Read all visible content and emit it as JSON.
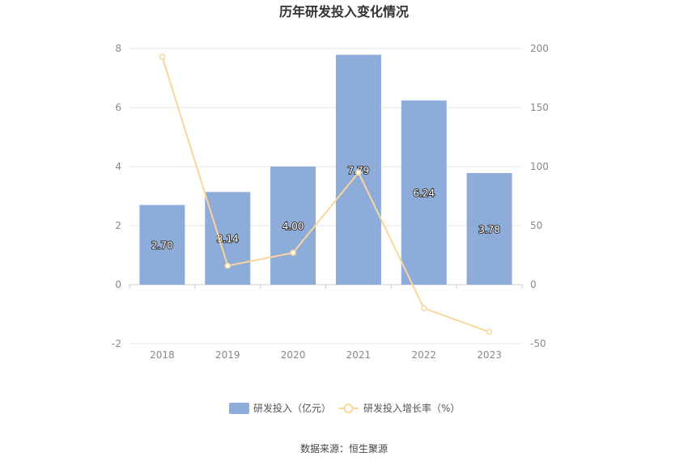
{
  "chart_data": {
    "type": "bar",
    "title": "历年研发投入变化情况",
    "categories": [
      "2018",
      "2019",
      "2020",
      "2021",
      "2022",
      "2023"
    ],
    "series": [
      {
        "name": "研发投入（亿元）",
        "type": "bar",
        "axis": "left",
        "values": [
          2.7,
          3.14,
          4.0,
          7.79,
          6.24,
          3.78
        ],
        "labels": [
          "2.70",
          "3.14",
          "4.00",
          "7.79",
          "6.24",
          "3.78"
        ],
        "color": "#8eacd9"
      },
      {
        "name": "研发投入增长率（%）",
        "type": "line",
        "axis": "right",
        "values": [
          193,
          16,
          27,
          95,
          -20,
          -40
        ],
        "color": "#f9d79b"
      }
    ],
    "left_axis": {
      "ylim": [
        -2,
        8
      ],
      "ticks": [
        "-2",
        "0",
        "2",
        "4",
        "6",
        "8"
      ]
    },
    "right_axis": {
      "ylim": [
        -50,
        200
      ],
      "ticks": [
        "-50",
        "0",
        "50",
        "100",
        "150",
        "200"
      ]
    },
    "grid": true,
    "legend_position": "bottom-center"
  },
  "source_text": "数据来源：恒生聚源"
}
